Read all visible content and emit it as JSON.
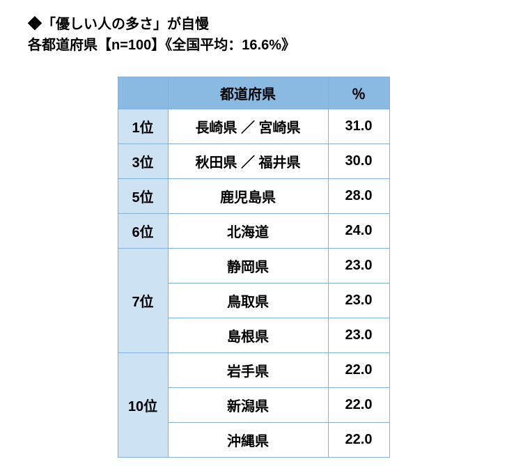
{
  "heading": {
    "line1": "◆「優しい人の多さ」が自慢",
    "line2": "各都道府県【n=100】《全国平均：16.6%》"
  },
  "table": {
    "border_color": "#7fb1de",
    "header_bg": "#8ab9e2",
    "rank_bg": "#cde2f3",
    "cell_bg": "#ffffff",
    "columns": {
      "rank": "",
      "prefecture": "都道府県",
      "percent": "％"
    },
    "groups": [
      {
        "rank": "1位",
        "rows": [
          {
            "pref": "長崎県 ／ 宮崎県",
            "pct": "31.0"
          }
        ]
      },
      {
        "rank": "3位",
        "rows": [
          {
            "pref": "秋田県 ／ 福井県",
            "pct": "30.0"
          }
        ]
      },
      {
        "rank": "5位",
        "rows": [
          {
            "pref": "鹿児島県",
            "pct": "28.0"
          }
        ]
      },
      {
        "rank": "6位",
        "rows": [
          {
            "pref": "北海道",
            "pct": "24.0"
          }
        ]
      },
      {
        "rank": "7位",
        "rows": [
          {
            "pref": "静岡県",
            "pct": "23.0"
          },
          {
            "pref": "鳥取県",
            "pct": "23.0"
          },
          {
            "pref": "島根県",
            "pct": "23.0"
          }
        ]
      },
      {
        "rank": "10位",
        "rows": [
          {
            "pref": "岩手県",
            "pct": "22.0"
          },
          {
            "pref": "新潟県",
            "pct": "22.0"
          },
          {
            "pref": "沖縄県",
            "pct": "22.0"
          }
        ]
      }
    ]
  }
}
